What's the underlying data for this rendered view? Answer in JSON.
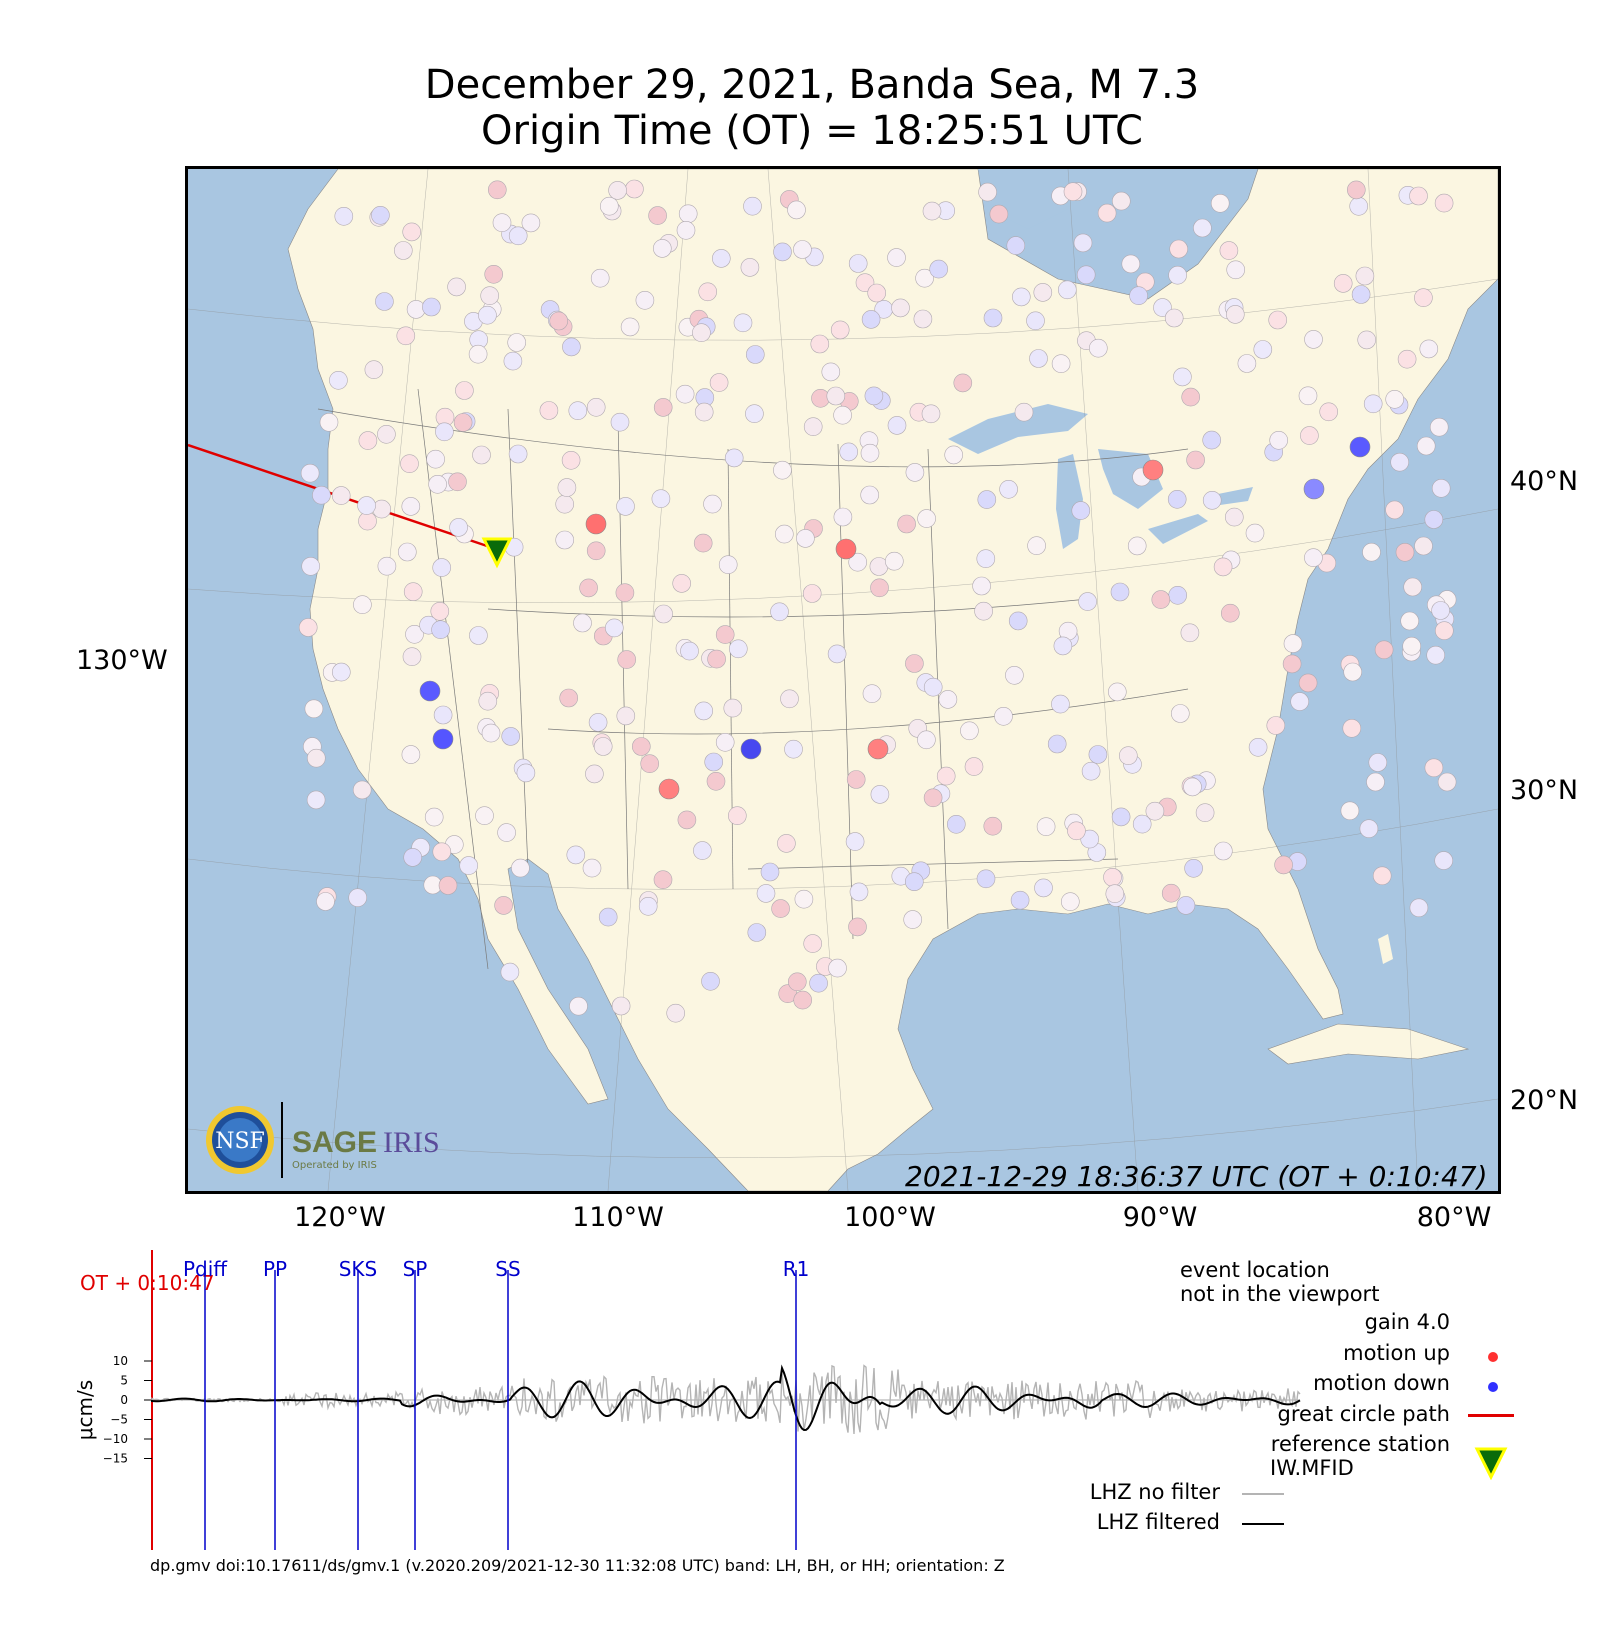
{
  "header": {
    "title_line1": "December 29, 2021, Banda Sea, M 7.3",
    "title_line2": "Origin Time (OT) = 18:25:51 UTC"
  },
  "map": {
    "lon_labels": [
      "120°W",
      "110°W",
      "100°W",
      "90°W",
      "80°W"
    ],
    "lat_labels": [
      "40°N",
      "30°N",
      "20°N"
    ],
    "left_label": "130°W",
    "timestamp": "2021-12-29 18:36:37 UTC (OT + 0:10:47)",
    "logo": {
      "nsf": "NSF",
      "sage": "SAGE",
      "iris": "IRIS",
      "tagline": "Operated by IRIS"
    },
    "colors": {
      "ocean": "#a9c6e1",
      "land": "#fbf6e1",
      "path": "#e00000",
      "station_up": "#ff3030",
      "station_down": "#3030ff",
      "reference": "#0a6b0a",
      "reference_outline": "#ffff00"
    },
    "reference_station": "IW.MFID"
  },
  "waveform": {
    "ot_label": "OT + 0:10:47",
    "ylabel": "μcm/s",
    "yticks": [
      "10",
      "5",
      "0",
      "−5",
      "−10",
      "−15"
    ],
    "phases": [
      "Pdiff",
      "PP",
      "SKS",
      "SP",
      "SS",
      "R1"
    ],
    "legend": {
      "line1": "event location",
      "line2": "not in the viewport",
      "gain": "gain  4.0",
      "motion_up": "motion up",
      "motion_down": "motion down",
      "great_circle": "great circle path",
      "ref_station_1": "reference station",
      "ref_station_2": "IW.MFID",
      "no_filter": "LHZ no filter",
      "filtered": "LHZ filtered"
    },
    "colors": {
      "raw": "#b4b4b4",
      "filtered": "#000000",
      "phase": "#0000cc",
      "ot": "#e00000"
    }
  },
  "footer": "dp.gmv doi:10.17611/ds/gmv.1 (v.2020.209/2021-12-30 11:32:08 UTC) band: LH, BH, or HH; orientation: Z"
}
